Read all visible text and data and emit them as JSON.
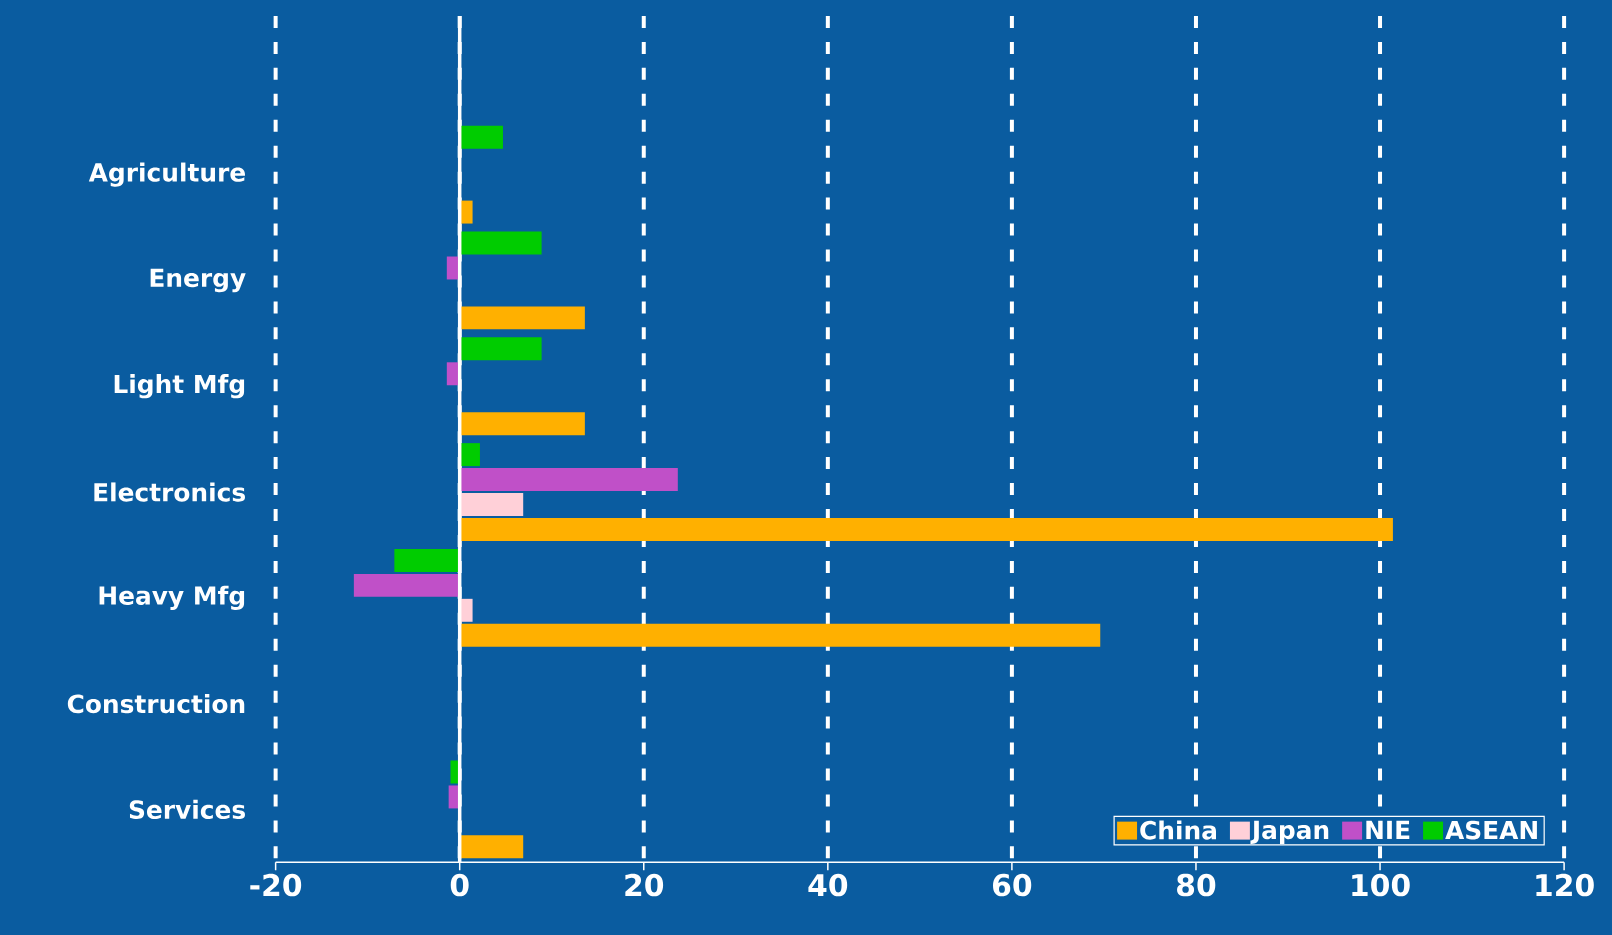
{
  "chart_data": {
    "type": "bar",
    "orientation": "horizontal",
    "categories": [
      "Agriculture",
      "Energy",
      "Light Mfg",
      "Electronics",
      "Heavy Mfg",
      "Construction",
      "Services"
    ],
    "series": [
      {
        "name": "China",
        "color": "#ffb000",
        "values": [
          1.4,
          13.6,
          13.6,
          101.4,
          69.6,
          0,
          6.9
        ]
      },
      {
        "name": "Japan",
        "color": "#ffd0d8",
        "values": [
          0,
          0,
          0,
          6.9,
          1.4,
          0,
          0
        ]
      },
      {
        "name": "NIE",
        "color": "#c050c8",
        "values": [
          0,
          -1.4,
          -1.4,
          23.7,
          -11.5,
          0,
          -1.2
        ]
      },
      {
        "name": "ASEAN",
        "color": "#00cc00",
        "values": [
          4.7,
          8.9,
          8.9,
          2.2,
          -7.1,
          0,
          -1.0
        ]
      }
    ],
    "xlim": [
      -20,
      120
    ],
    "xticks": [
      -20,
      0,
      20,
      40,
      60,
      80,
      100,
      120
    ],
    "grid": "x",
    "legend": "bottom right",
    "ref_lines": [
      {
        "axis": "x",
        "value": 0,
        "color": "#ffffff",
        "line_style": "solid"
      }
    ]
  }
}
